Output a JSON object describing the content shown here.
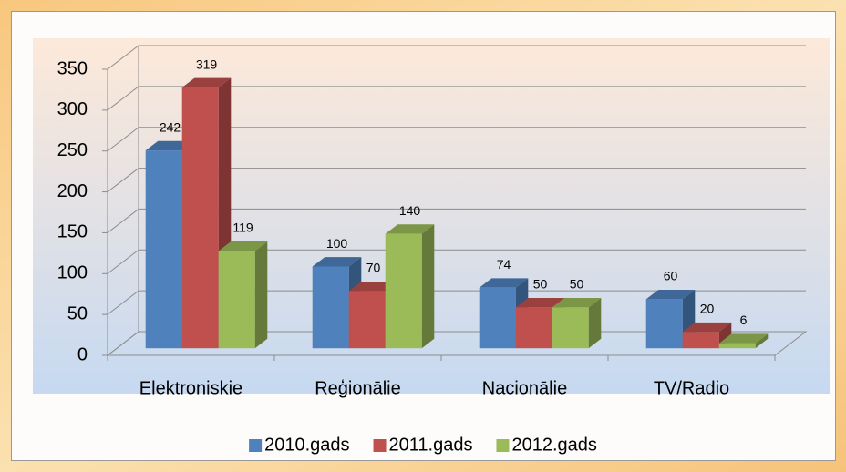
{
  "chart_data": {
    "type": "bar3d",
    "categories": [
      "Elektroniskie",
      "Reģionālie",
      "Nacionālie",
      "TV/Radio"
    ],
    "series": [
      {
        "name": "2010.gads",
        "color": "#4f81bd",
        "values": [
          242,
          100,
          74,
          60
        ]
      },
      {
        "name": "2011.gads",
        "color": "#c0504d",
        "values": [
          319,
          70,
          50,
          20
        ]
      },
      {
        "name": "2012.gads",
        "color": "#9bbb59",
        "values": [
          119,
          140,
          50,
          6
        ]
      }
    ],
    "ylim": [
      0,
      350
    ],
    "yticks": [
      0,
      50,
      100,
      150,
      200,
      250,
      300,
      350
    ],
    "grid": true,
    "legend": "bottom"
  }
}
